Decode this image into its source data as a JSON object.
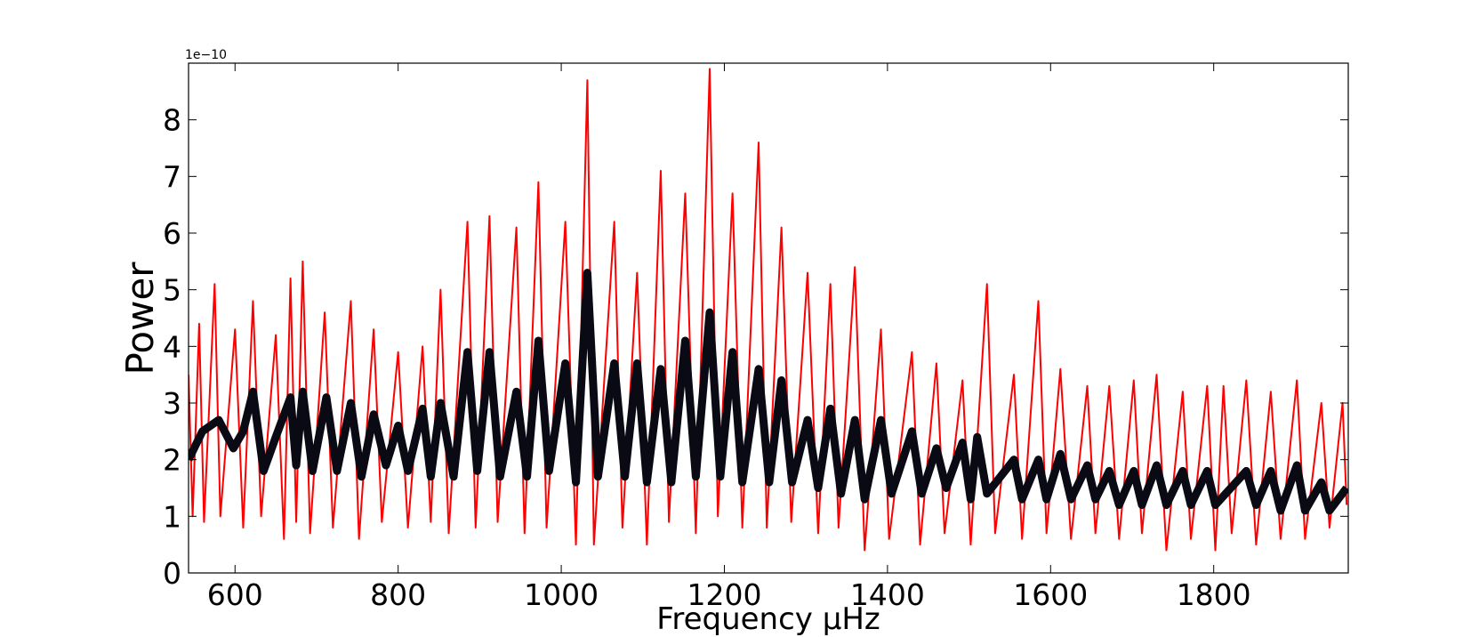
{
  "chart_data": {
    "type": "line",
    "x_label": "Frequency μHz",
    "y_label": "Power",
    "offset_label": "1e−10",
    "xlim": [
      543,
      1965
    ],
    "ylim": [
      0,
      9
    ],
    "xticks": [
      600,
      800,
      1000,
      1200,
      1400,
      1600,
      1800
    ],
    "yticks": [
      0,
      1,
      2,
      3,
      4,
      5,
      6,
      7,
      8
    ],
    "grid": false,
    "series": [
      {
        "color": "#ff0000",
        "width": 2,
        "x": [
          543,
          548,
          556,
          562,
          575,
          582,
          600,
          610,
          622,
          632,
          650,
          660,
          668,
          675,
          683,
          692,
          710,
          720,
          742,
          752,
          770,
          780,
          800,
          812,
          830,
          840,
          852,
          862,
          885,
          895,
          912,
          922,
          945,
          955,
          972,
          982,
          1005,
          1018,
          1032,
          1040,
          1065,
          1075,
          1093,
          1105,
          1122,
          1132,
          1152,
          1165,
          1182,
          1192,
          1210,
          1222,
          1242,
          1252,
          1270,
          1282,
          1302,
          1315,
          1330,
          1340,
          1360,
          1372,
          1392,
          1402,
          1430,
          1440,
          1460,
          1470,
          1492,
          1502,
          1522,
          1532,
          1555,
          1565,
          1585,
          1595,
          1612,
          1625,
          1645,
          1655,
          1672,
          1684,
          1702,
          1712,
          1730,
          1742,
          1762,
          1772,
          1792,
          1802,
          1812,
          1822,
          1840,
          1852,
          1870,
          1882,
          1902,
          1912,
          1932,
          1942,
          1958,
          1963
        ],
        "values": [
          3.5,
          1.0,
          4.4,
          0.9,
          5.1,
          1.0,
          4.3,
          0.8,
          4.8,
          1.0,
          4.2,
          0.6,
          5.2,
          0.9,
          5.5,
          0.7,
          4.6,
          0.8,
          4.8,
          0.6,
          4.3,
          0.9,
          3.9,
          0.8,
          4.0,
          0.9,
          5.0,
          0.7,
          6.2,
          0.8,
          6.3,
          0.9,
          6.1,
          0.7,
          6.9,
          0.8,
          6.2,
          0.5,
          8.7,
          0.5,
          6.2,
          0.8,
          5.3,
          0.5,
          7.1,
          0.9,
          6.7,
          0.7,
          8.9,
          1.0,
          6.7,
          0.8,
          7.6,
          0.8,
          6.1,
          0.9,
          5.3,
          0.7,
          5.1,
          0.8,
          5.4,
          0.4,
          4.3,
          0.6,
          3.9,
          0.5,
          3.7,
          0.7,
          3.4,
          0.5,
          5.1,
          0.7,
          3.5,
          0.6,
          4.8,
          0.7,
          3.6,
          0.6,
          3.3,
          0.7,
          3.3,
          0.6,
          3.4,
          0.7,
          3.5,
          0.4,
          3.2,
          0.6,
          3.3,
          0.4,
          3.3,
          0.7,
          3.4,
          0.5,
          3.2,
          0.6,
          3.4,
          0.6,
          3.0,
          0.8,
          3.0,
          1.2
        ]
      },
      {
        "color": "#0a0a14",
        "width": 9,
        "x": [
          543,
          560,
          580,
          598,
          610,
          622,
          635,
          650,
          668,
          675,
          683,
          695,
          712,
          725,
          742,
          755,
          770,
          785,
          800,
          812,
          830,
          840,
          852,
          868,
          885,
          897,
          912,
          925,
          945,
          958,
          972,
          985,
          1005,
          1018,
          1032,
          1045,
          1065,
          1078,
          1093,
          1105,
          1122,
          1135,
          1152,
          1165,
          1182,
          1195,
          1210,
          1222,
          1242,
          1255,
          1270,
          1283,
          1302,
          1315,
          1330,
          1343,
          1360,
          1372,
          1392,
          1405,
          1430,
          1442,
          1460,
          1472,
          1492,
          1502,
          1510,
          1522,
          1555,
          1565,
          1585,
          1595,
          1612,
          1625,
          1645,
          1655,
          1672,
          1684,
          1702,
          1712,
          1730,
          1742,
          1762,
          1772,
          1792,
          1802,
          1840,
          1852,
          1870,
          1882,
          1902,
          1912,
          1932,
          1942,
          1963
        ],
        "values": [
          2.0,
          2.5,
          2.7,
          2.2,
          2.5,
          3.2,
          1.8,
          2.4,
          3.1,
          1.9,
          3.2,
          1.8,
          3.1,
          1.8,
          3.0,
          1.7,
          2.8,
          1.9,
          2.6,
          1.8,
          2.9,
          1.7,
          3.0,
          1.7,
          3.9,
          1.8,
          3.9,
          1.7,
          3.2,
          1.7,
          4.1,
          1.8,
          3.7,
          1.6,
          5.3,
          1.7,
          3.7,
          1.7,
          3.7,
          1.6,
          3.6,
          1.6,
          4.1,
          1.7,
          4.6,
          1.7,
          3.9,
          1.6,
          3.6,
          1.6,
          3.4,
          1.6,
          2.7,
          1.5,
          2.9,
          1.4,
          2.7,
          1.3,
          2.7,
          1.4,
          2.5,
          1.4,
          2.2,
          1.5,
          2.3,
          1.3,
          2.4,
          1.4,
          2.0,
          1.3,
          2.0,
          1.3,
          2.1,
          1.3,
          1.9,
          1.3,
          1.8,
          1.2,
          1.8,
          1.2,
          1.9,
          1.2,
          1.8,
          1.2,
          1.8,
          1.2,
          1.8,
          1.2,
          1.8,
          1.1,
          1.9,
          1.1,
          1.6,
          1.1,
          1.5
        ]
      }
    ]
  }
}
